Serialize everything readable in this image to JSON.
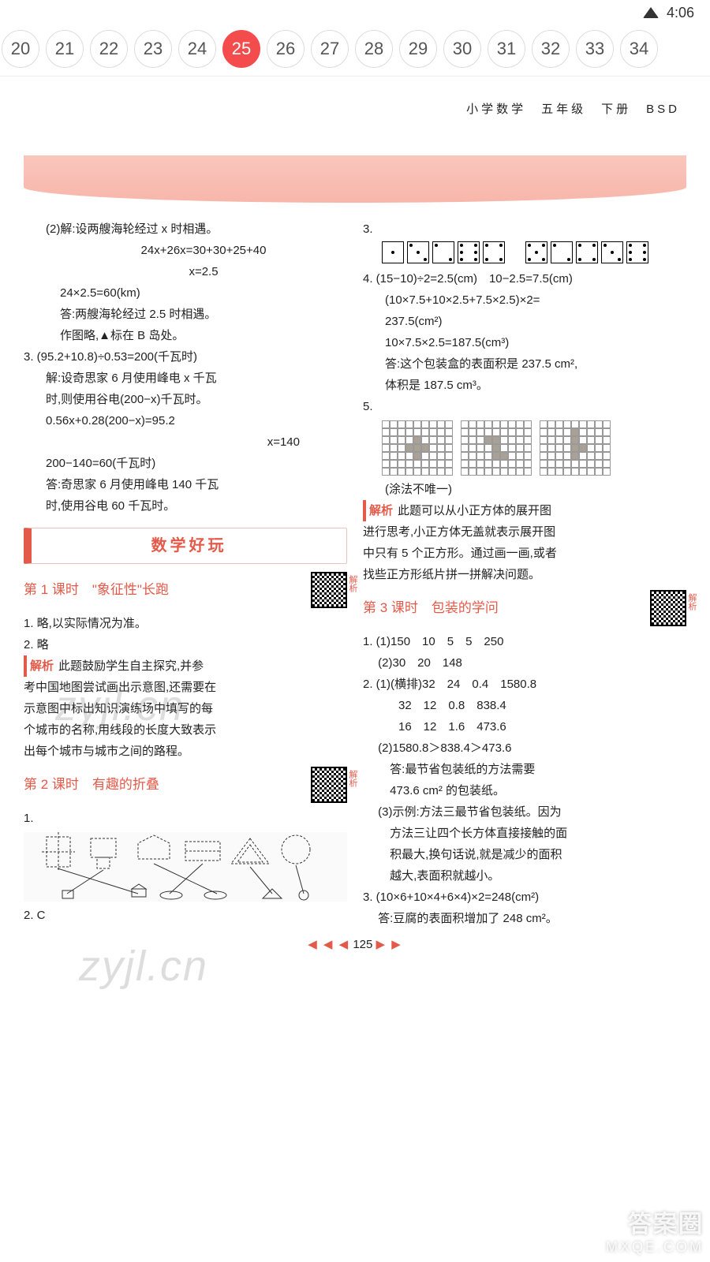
{
  "status": {
    "time": "4:06"
  },
  "pager": {
    "items": [
      "20",
      "21",
      "22",
      "23",
      "24",
      "25",
      "26",
      "27",
      "28",
      "29",
      "30",
      "31",
      "32",
      "33",
      "34"
    ],
    "active_index": 5
  },
  "banner": {
    "text": "小学数学　五年级　下册　BSD"
  },
  "left": {
    "p2": {
      "l1": "(2)解:设两艘海轮经过 x 时相遇。",
      "l2": "24x+26x=30+30+25+40",
      "l3": "x=2.5",
      "l4": "24×2.5=60(km)",
      "l5": "答:两艘海轮经过 2.5 时相遇。",
      "l6": "作图略,▲标在 B 岛处。"
    },
    "p3": {
      "l1": "3. (95.2+10.8)÷0.53=200(千瓦时)",
      "l2": "解:设奇思家 6 月使用峰电 x 千瓦",
      "l3": "时,则使用谷电(200−x)千瓦时。",
      "l4": "0.56x+0.28(200−x)=95.2",
      "l5": "x=140",
      "l6": "200−140=60(千瓦时)",
      "l7": "答:奇思家 6 月使用峰电 140 千瓦",
      "l8": "时,使用谷电 60 千瓦时。"
    },
    "section": "数学好玩",
    "lesson1": {
      "title": "第 1 课时　\"象征性\"长跑",
      "qr_label": "解析"
    },
    "l1a": "1. 略,以实际情况为准。",
    "l1b": "2. 略",
    "jiexi_label": "解析",
    "l1c": "此题鼓励学生自主探究,并参",
    "l1d": "考中国地图尝试画出示意图,还需要在",
    "l1e": "示意图中标出知识演练场中填写的每",
    "l1f": "个城市的名称,用线段的长度大致表示",
    "l1g": "出每个城市与城市之间的路程。",
    "lesson2": {
      "title": "第 2 课时　有趣的折叠",
      "qr_label": "解析"
    },
    "l2a": "1.",
    "l2b": "2. C"
  },
  "right": {
    "q3_label": "3.",
    "q4": {
      "l1": "4. (15−10)÷2=2.5(cm)　10−2.5=7.5(cm)",
      "l2": "(10×7.5+10×2.5+7.5×2.5)×2=",
      "l3": "237.5(cm²)",
      "l4": "10×7.5×2.5=187.5(cm³)",
      "l5": "答:这个包装盒的表面积是 237.5 cm²,",
      "l6": "体积是 187.5 cm³。"
    },
    "q5_label": "5.",
    "q5_note": "(涂法不唯一)",
    "jiexi_label": "解析",
    "jx1": "此题可以从小正方体的展开图",
    "jx2": "进行思考,小正方体无盖就表示展开图",
    "jx3": "中只有 5 个正方形。通过画一画,或者",
    "jx4": "找些正方形纸片拼一拼解决问题。",
    "lesson3": {
      "title": "第 3 课时　包装的学问",
      "qr_label": "解析"
    },
    "r1a": "1. (1)150　10　5　5　250",
    "r1b": "　 (2)30　20　148",
    "r2a": "2. (1)(横排)32　24　0.4　1580.8",
    "r2b": "　　　32　12　0.8　838.4",
    "r2c": "　　　16　12　1.6　473.6",
    "r2d": "　 (2)1580.8＞838.4＞473.6",
    "r2e": "　　 答:最节省包装纸的方法需要",
    "r2f": "　　 473.6 cm² 的包装纸。",
    "r2g": "　 (3)示例:方法三最节省包装纸。因为",
    "r2h": "　　 方法三让四个长方体直接接触的面",
    "r2i": "　　 积最大,换句话说,就是减少的面积",
    "r2j": "　　 越大,表面积就越小。",
    "r3a": "3. (10×6+10×4+6×4)×2=248(cm²)",
    "r3b": "　 答:豆腐的表面积增加了 248 cm²。"
  },
  "footer": {
    "left_tri": "◀ ◀ ◀",
    "num": "125",
    "right_tri": "▶ ▶"
  },
  "watermarks": {
    "w1": "zyjl.cn",
    "w2": "zyjl.cn"
  },
  "corner": {
    "line1": "答案圈",
    "line2": "MXQE.COM"
  },
  "colors": {
    "accent": "#e35a4a",
    "chip_active": "#f44c4c",
    "banner_top": "#f9c6bd",
    "banner_bottom": "#f8b6aa"
  }
}
